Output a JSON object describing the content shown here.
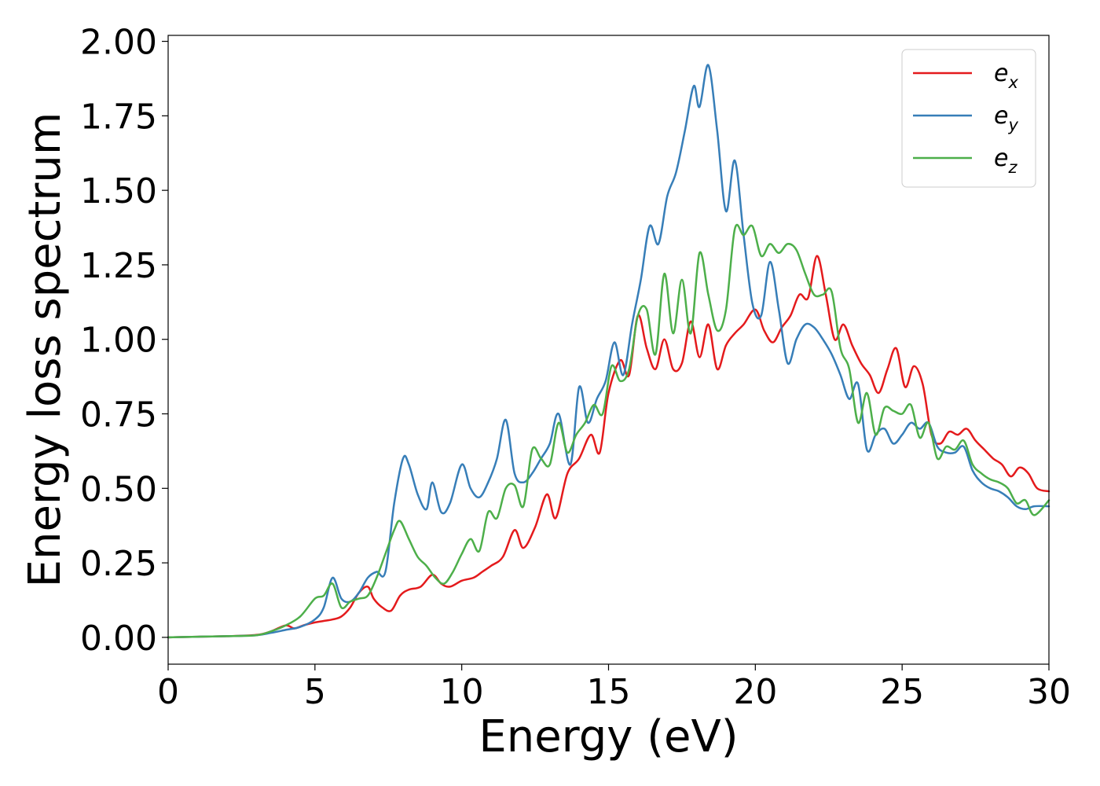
{
  "chart_data": {
    "type": "line",
    "title": "",
    "xlabel": "Energy (eV)",
    "ylabel": "Energy loss spectrum",
    "xlim": [
      0,
      30
    ],
    "ylim": [
      -0.09,
      2.02
    ],
    "xticks": [
      0,
      5,
      10,
      15,
      20,
      25,
      30
    ],
    "xtick_labels": [
      "0",
      "5",
      "10",
      "15",
      "20",
      "25",
      "30"
    ],
    "yticks": [
      0.0,
      0.25,
      0.5,
      0.75,
      1.0,
      1.25,
      1.5,
      1.75,
      2.0
    ],
    "ytick_labels": [
      "0.00",
      "0.25",
      "0.50",
      "0.75",
      "1.00",
      "1.25",
      "1.50",
      "1.75",
      "2.00"
    ],
    "grid": false,
    "legend_position": "top-right",
    "series": [
      {
        "name": "e",
        "subscript": "x",
        "color": "#e41a1c",
        "x": [
          0,
          1,
          2,
          3,
          3.5,
          4,
          4.3,
          4.6,
          5,
          5.3,
          5.6,
          5.9,
          6.2,
          6.5,
          6.8,
          7.0,
          7.3,
          7.6,
          7.9,
          8.2,
          8.6,
          9.0,
          9.3,
          9.6,
          10.0,
          10.4,
          10.7,
          11.0,
          11.4,
          11.8,
          12.1,
          12.5,
          12.9,
          13.2,
          13.6,
          14.0,
          14.4,
          14.7,
          15.0,
          15.4,
          15.7,
          16.0,
          16.3,
          16.6,
          16.9,
          17.2,
          17.5,
          17.8,
          18.1,
          18.4,
          18.7,
          19.0,
          19.3,
          19.6,
          20.0,
          20.3,
          20.6,
          20.9,
          21.2,
          21.5,
          21.8,
          22.1,
          22.4,
          22.7,
          23.0,
          23.3,
          23.6,
          23.9,
          24.2,
          24.5,
          24.8,
          25.1,
          25.4,
          25.7,
          26.0,
          26.3,
          26.6,
          26.9,
          27.2,
          27.5,
          27.8,
          28.1,
          28.4,
          28.7,
          29.0,
          29.3,
          29.6,
          30.0
        ],
        "y": [
          0.0,
          0.002,
          0.004,
          0.008,
          0.02,
          0.04,
          0.03,
          0.04,
          0.05,
          0.055,
          0.06,
          0.07,
          0.1,
          0.15,
          0.17,
          0.13,
          0.1,
          0.09,
          0.14,
          0.16,
          0.17,
          0.21,
          0.18,
          0.17,
          0.19,
          0.2,
          0.22,
          0.24,
          0.27,
          0.36,
          0.3,
          0.37,
          0.48,
          0.4,
          0.55,
          0.6,
          0.68,
          0.62,
          0.82,
          0.93,
          0.88,
          1.08,
          0.97,
          0.9,
          1.0,
          0.9,
          0.92,
          1.06,
          0.94,
          1.05,
          0.9,
          0.98,
          1.02,
          1.05,
          1.1,
          1.03,
          0.99,
          1.04,
          1.08,
          1.15,
          1.14,
          1.28,
          1.15,
          1.0,
          1.05,
          0.98,
          0.92,
          0.88,
          0.82,
          0.9,
          0.97,
          0.84,
          0.91,
          0.85,
          0.68,
          0.65,
          0.69,
          0.68,
          0.7,
          0.66,
          0.63,
          0.6,
          0.58,
          0.54,
          0.57,
          0.55,
          0.5,
          0.49
        ]
      },
      {
        "name": "e",
        "subscript": "y",
        "color": "#377eb8",
        "x": [
          0,
          1,
          2,
          3,
          3.5,
          4,
          4.5,
          5,
          5.3,
          5.6,
          5.9,
          6.2,
          6.5,
          6.8,
          7.1,
          7.4,
          7.7,
          8.0,
          8.2,
          8.5,
          8.8,
          9.0,
          9.3,
          9.6,
          10.0,
          10.3,
          10.6,
          10.9,
          11.2,
          11.5,
          11.8,
          12.1,
          12.4,
          12.7,
          13.0,
          13.3,
          13.7,
          14.0,
          14.3,
          14.6,
          14.9,
          15.2,
          15.5,
          15.8,
          16.1,
          16.4,
          16.7,
          17.0,
          17.3,
          17.6,
          17.9,
          18.1,
          18.4,
          18.7,
          19.0,
          19.3,
          19.6,
          19.9,
          20.2,
          20.5,
          20.8,
          21.1,
          21.4,
          21.7,
          22.0,
          22.3,
          22.6,
          22.9,
          23.2,
          23.5,
          23.8,
          24.1,
          24.4,
          24.7,
          25.0,
          25.3,
          25.6,
          25.9,
          26.2,
          26.5,
          26.8,
          27.1,
          27.4,
          27.7,
          28.0,
          28.3,
          28.6,
          28.9,
          29.2,
          29.5,
          30.0
        ],
        "y": [
          0.0,
          0.002,
          0.004,
          0.007,
          0.015,
          0.025,
          0.035,
          0.06,
          0.1,
          0.2,
          0.13,
          0.12,
          0.15,
          0.2,
          0.22,
          0.22,
          0.45,
          0.6,
          0.58,
          0.48,
          0.43,
          0.52,
          0.42,
          0.45,
          0.58,
          0.5,
          0.47,
          0.52,
          0.6,
          0.73,
          0.55,
          0.52,
          0.55,
          0.6,
          0.65,
          0.75,
          0.58,
          0.84,
          0.72,
          0.8,
          0.86,
          0.99,
          0.88,
          1.05,
          1.2,
          1.38,
          1.32,
          1.48,
          1.56,
          1.7,
          1.85,
          1.78,
          1.92,
          1.7,
          1.43,
          1.6,
          1.35,
          1.12,
          1.08,
          1.26,
          1.1,
          0.92,
          1.0,
          1.05,
          1.04,
          1.0,
          0.95,
          0.88,
          0.8,
          0.85,
          0.63,
          0.68,
          0.7,
          0.65,
          0.68,
          0.72,
          0.7,
          0.72,
          0.64,
          0.62,
          0.62,
          0.64,
          0.56,
          0.52,
          0.5,
          0.49,
          0.47,
          0.44,
          0.43,
          0.44,
          0.44
        ]
      },
      {
        "name": "e",
        "subscript": "z",
        "color": "#4daf4a",
        "x": [
          0,
          1,
          2,
          3,
          3.5,
          4,
          4.5,
          5,
          5.3,
          5.6,
          5.9,
          6.2,
          6.5,
          6.8,
          7.1,
          7.4,
          7.7,
          7.9,
          8.2,
          8.5,
          8.8,
          9.1,
          9.4,
          9.7,
          10.0,
          10.3,
          10.6,
          10.9,
          11.2,
          11.5,
          11.8,
          12.1,
          12.4,
          12.7,
          13.0,
          13.3,
          13.6,
          13.9,
          14.2,
          14.5,
          14.8,
          15.1,
          15.4,
          15.7,
          16.0,
          16.3,
          16.6,
          16.9,
          17.2,
          17.5,
          17.8,
          18.1,
          18.4,
          18.7,
          19.0,
          19.3,
          19.6,
          19.9,
          20.2,
          20.5,
          20.8,
          21.1,
          21.4,
          21.7,
          22.0,
          22.3,
          22.6,
          22.9,
          23.2,
          23.5,
          23.8,
          24.1,
          24.4,
          24.7,
          25.0,
          25.3,
          25.6,
          25.9,
          26.2,
          26.5,
          26.8,
          27.1,
          27.4,
          27.7,
          28.0,
          28.3,
          28.6,
          28.9,
          29.2,
          29.5,
          30.0
        ],
        "y": [
          0.0,
          0.002,
          0.004,
          0.007,
          0.02,
          0.04,
          0.07,
          0.13,
          0.14,
          0.18,
          0.1,
          0.12,
          0.13,
          0.14,
          0.2,
          0.28,
          0.36,
          0.39,
          0.33,
          0.27,
          0.24,
          0.2,
          0.18,
          0.22,
          0.28,
          0.33,
          0.29,
          0.42,
          0.4,
          0.5,
          0.51,
          0.44,
          0.63,
          0.6,
          0.58,
          0.72,
          0.62,
          0.68,
          0.72,
          0.78,
          0.75,
          0.91,
          0.86,
          0.9,
          1.08,
          1.1,
          0.95,
          1.22,
          1.02,
          1.2,
          1.02,
          1.29,
          1.15,
          1.03,
          1.1,
          1.37,
          1.35,
          1.38,
          1.28,
          1.32,
          1.29,
          1.32,
          1.3,
          1.22,
          1.15,
          1.15,
          1.16,
          0.97,
          0.9,
          0.72,
          0.82,
          0.68,
          0.77,
          0.76,
          0.75,
          0.78,
          0.67,
          0.72,
          0.6,
          0.64,
          0.63,
          0.66,
          0.58,
          0.55,
          0.53,
          0.52,
          0.5,
          0.45,
          0.46,
          0.41,
          0.46
        ]
      }
    ]
  }
}
